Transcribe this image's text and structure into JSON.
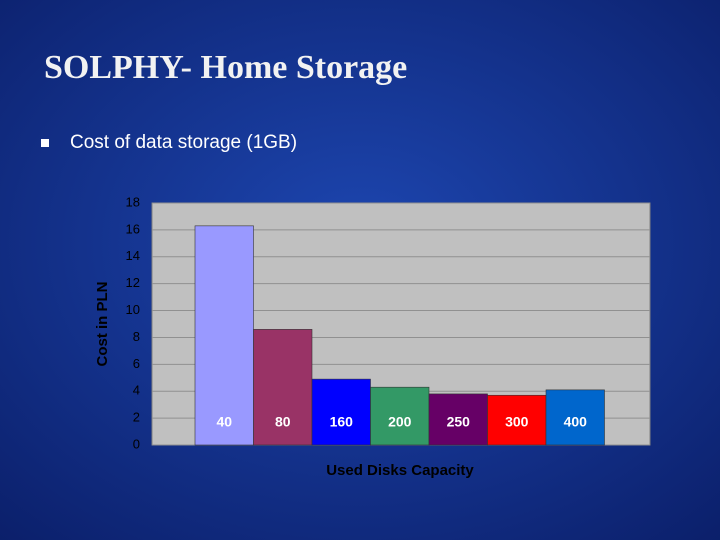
{
  "slide": {
    "title": "SOLPHY- Home Storage",
    "bullet": "Cost of data storage (1GB)"
  },
  "chart_data": {
    "type": "bar",
    "categories": [
      "40",
      "80",
      "160",
      "200",
      "250",
      "300",
      "400"
    ],
    "values": [
      16.3,
      8.6,
      4.9,
      4.3,
      3.8,
      3.7,
      4.1
    ],
    "colors": [
      "#9999ff",
      "#993366",
      "#0000ff",
      "#339966",
      "#660066",
      "#ff0000",
      "#0066cc"
    ],
    "ylim": [
      0,
      18
    ],
    "yticks": [
      0,
      2,
      4,
      6,
      8,
      10,
      12,
      14,
      16,
      18
    ],
    "y_label": "Cost in PLN",
    "x_label": "Used Disks Capacity",
    "grid": true
  }
}
